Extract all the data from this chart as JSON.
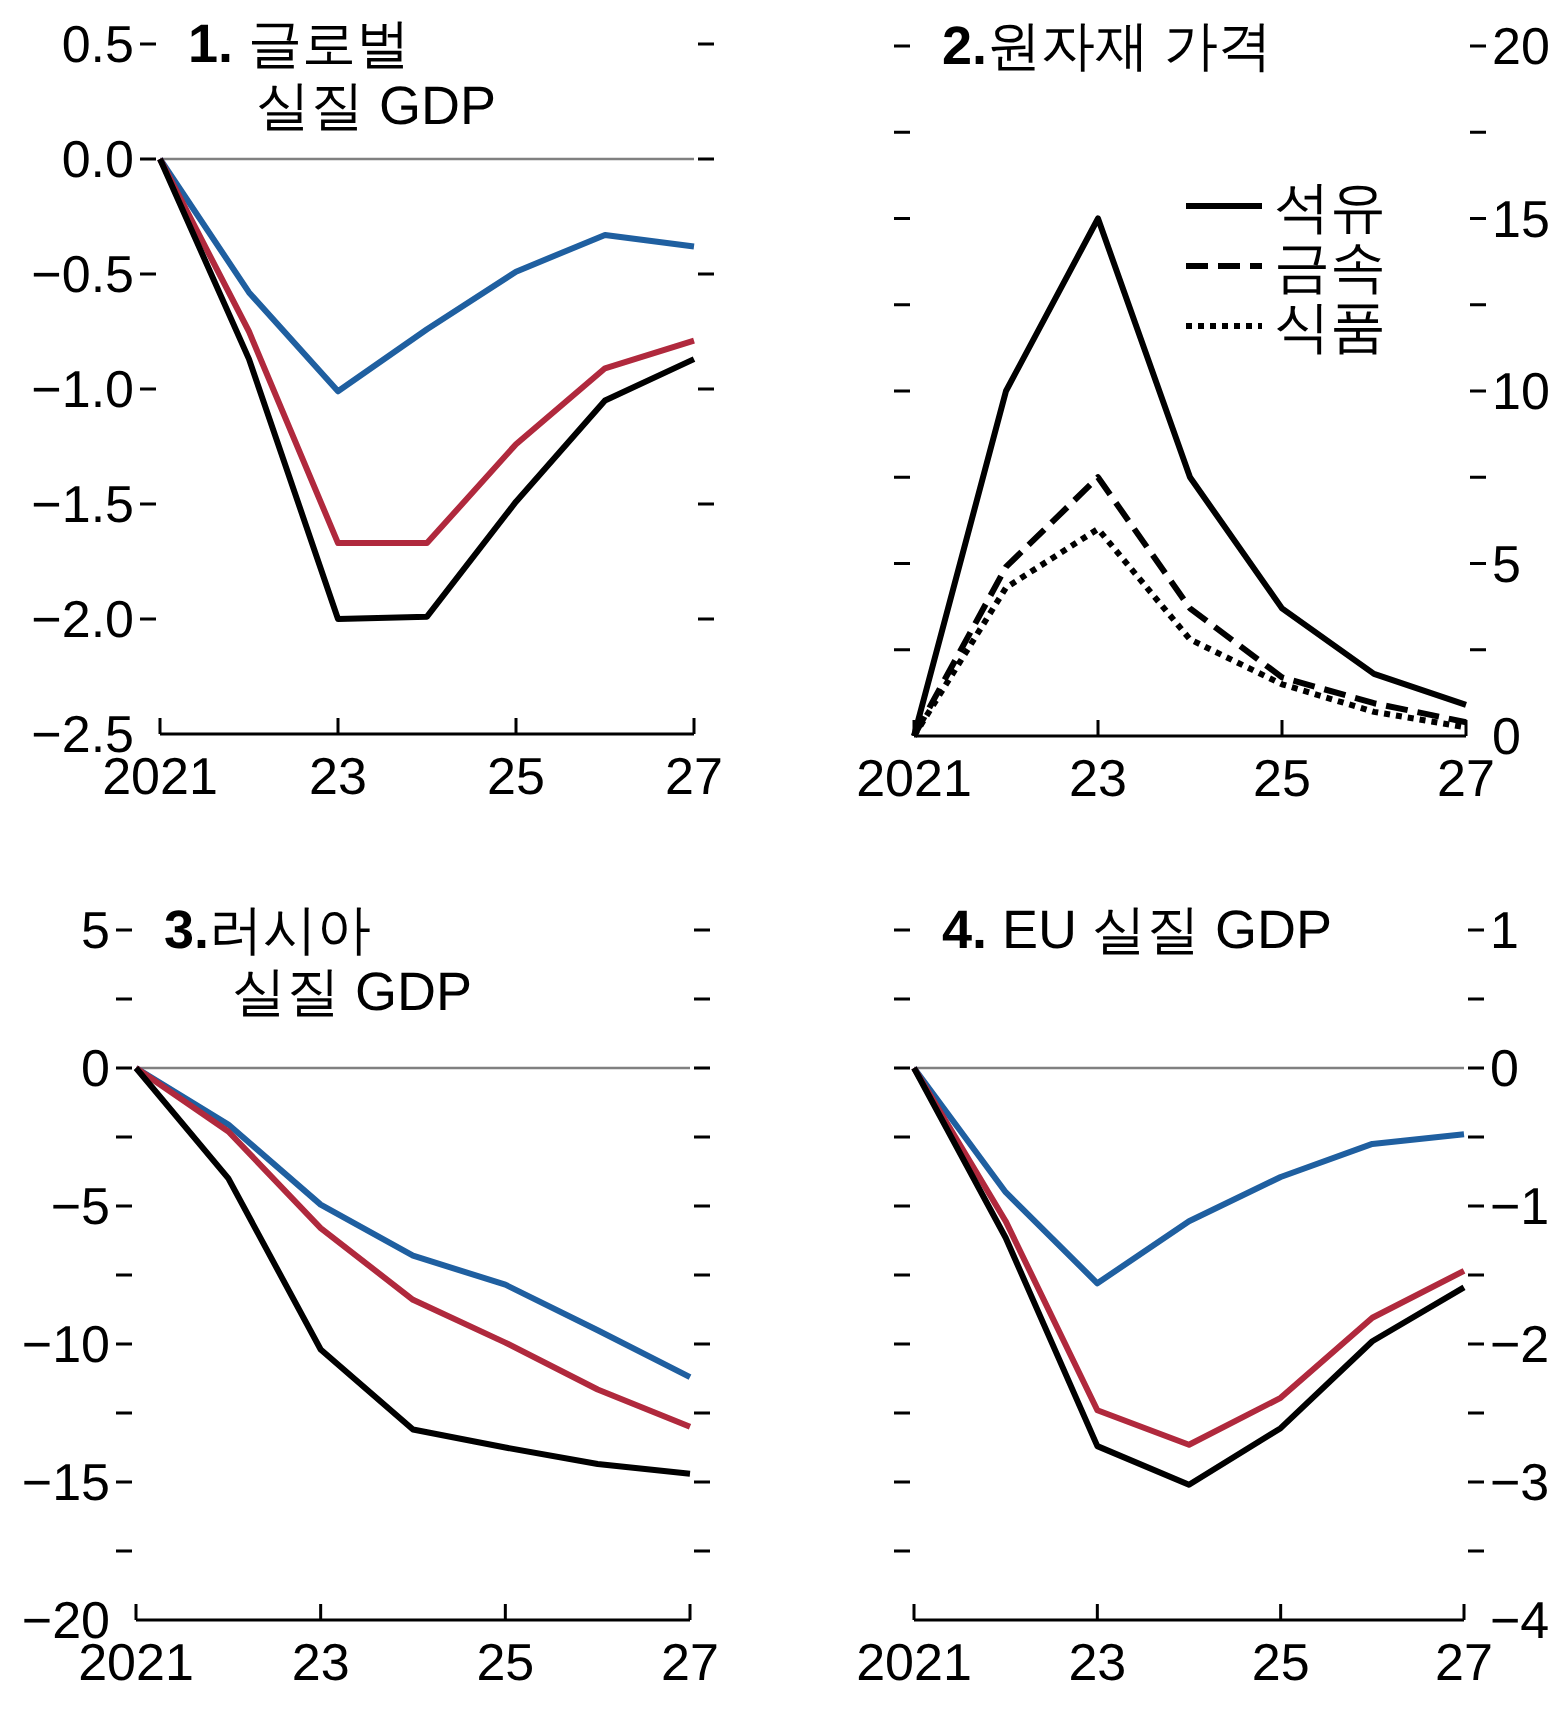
{
  "chart_data": [
    {
      "type": "line",
      "title": "1. 글로벌\n실질 GDP",
      "x": [
        2021,
        2022,
        2023,
        2024,
        2025,
        2026,
        2027
      ],
      "xlim": [
        2021,
        2027
      ],
      "xticks": [
        {
          "value": 2021,
          "label": "2021"
        },
        {
          "value": 2023,
          "label": "23"
        },
        {
          "value": 2025,
          "label": "25"
        },
        {
          "value": 2027,
          "label": "27"
        }
      ],
      "ylim": [
        -2.5,
        0.5
      ],
      "yticks": [
        {
          "value": -2.5,
          "label": "−2.5"
        },
        {
          "value": -2.0,
          "label": "−2.0"
        },
        {
          "value": -1.5,
          "label": "−1.5"
        },
        {
          "value": -1.0,
          "label": "−1.0"
        },
        {
          "value": -0.5,
          "label": "−0.5"
        },
        {
          "value": 0,
          "label": "0.0"
        },
        0.5
      ],
      "ref_lines": [
        {
          "axis": "y",
          "value": 0,
          "color": "#808080"
        }
      ],
      "legend": false,
      "grid": false,
      "series": [
        {
          "color": "#1f5fa0",
          "values": [
            0,
            -0.58,
            -1.01,
            -0.74,
            -0.49,
            -0.33,
            -0.38
          ]
        },
        {
          "color": "#b0293d",
          "values": [
            0,
            -0.75,
            -1.67,
            -1.67,
            -1.24,
            -0.91,
            -0.79
          ]
        },
        {
          "color": "#000000",
          "values": [
            0,
            -0.87,
            -2.0,
            -1.99,
            -1.49,
            -1.05,
            -0.87
          ]
        }
      ]
    },
    {
      "type": "line",
      "title": "2.원자재 가격",
      "x": [
        2021,
        2022,
        2023,
        2024,
        2025,
        2026,
        2027
      ],
      "xlim": [
        2021,
        2027
      ],
      "xticks": [
        {
          "value": 2021,
          "label": "2021"
        },
        {
          "value": 2023,
          "label": "23"
        },
        {
          "value": 2025,
          "label": "25"
        },
        {
          "value": 2027,
          "label": "27"
        }
      ],
      "y2lim": [
        0,
        20
      ],
      "y2ticks": [
        0,
        {
          "value": 2.5,
          "label": null
        },
        5,
        {
          "value": 7.5,
          "label": null
        },
        10,
        {
          "value": 12.5,
          "label": null
        },
        15,
        {
          "value": 17.5,
          "label": null
        },
        20
      ],
      "legend": "top right",
      "grid": false,
      "series": [
        {
          "name": "석유",
          "color": "#000000",
          "axis": "y2",
          "line_style": "solid",
          "values": [
            0,
            10.0,
            15.0,
            7.5,
            3.7,
            1.8,
            0.9
          ]
        },
        {
          "name": "금속",
          "color": "#000000",
          "axis": "y2",
          "line_style": "dashed",
          "values": [
            0,
            4.9,
            7.5,
            3.7,
            1.7,
            0.95,
            0.4
          ]
        },
        {
          "name": "식품",
          "color": "#000000",
          "axis": "y2",
          "line_style": "dotted",
          "values": [
            0,
            4.3,
            6.0,
            2.8,
            1.5,
            0.7,
            0.25
          ]
        }
      ]
    },
    {
      "type": "line",
      "title": "3.러시아\n실질 GDP",
      "x": [
        2021,
        2022,
        2023,
        2024,
        2025,
        2026,
        2027
      ],
      "xlim": [
        2021,
        2027
      ],
      "xticks": [
        {
          "value": 2021,
          "label": "2021"
        },
        {
          "value": 2023,
          "label": "23"
        },
        {
          "value": 2025,
          "label": "25"
        },
        {
          "value": 2027,
          "label": "27"
        }
      ],
      "ylim": [
        -20,
        5
      ],
      "yticks": [
        {
          "value": -20,
          "label": "−20"
        },
        {
          "value": -17.5,
          "label": null
        },
        {
          "value": -15,
          "label": "−15"
        },
        {
          "value": -12.5,
          "label": null
        },
        {
          "value": -10,
          "label": "−10"
        },
        {
          "value": -7.5,
          "label": null
        },
        {
          "value": -5,
          "label": "−5"
        },
        {
          "value": -2.5,
          "label": null
        },
        0,
        {
          "value": 2.5,
          "label": null
        },
        5
      ],
      "ref_lines": [
        {
          "axis": "y",
          "value": 0,
          "color": "#808080"
        }
      ],
      "legend": false,
      "grid": false,
      "series": [
        {
          "color": "#1f5fa0",
          "values": [
            0,
            -2.05,
            -4.95,
            -6.8,
            -7.85,
            -9.5,
            -11.2
          ]
        },
        {
          "color": "#b0293d",
          "values": [
            0,
            -2.3,
            -5.8,
            -8.4,
            -9.95,
            -11.65,
            -13.0
          ]
        },
        {
          "color": "#000000",
          "values": [
            0,
            -4.0,
            -10.2,
            -13.1,
            -13.75,
            -14.35,
            -14.7
          ]
        }
      ]
    },
    {
      "type": "line",
      "title": "4. EU 실질 GDP",
      "x": [
        2021,
        2022,
        2023,
        2024,
        2025,
        2026,
        2027
      ],
      "xlim": [
        2021,
        2027
      ],
      "xticks": [
        {
          "value": 2021,
          "label": "2021"
        },
        {
          "value": 2023,
          "label": "23"
        },
        {
          "value": 2025,
          "label": "25"
        },
        {
          "value": 2027,
          "label": "27"
        }
      ],
      "y2lim": [
        -4,
        1
      ],
      "y2ticks": [
        {
          "value": -4,
          "label": "−4"
        },
        {
          "value": -3.5,
          "label": null
        },
        {
          "value": -3,
          "label": "−3"
        },
        {
          "value": -2.5,
          "label": null
        },
        {
          "value": -2,
          "label": "−2"
        },
        {
          "value": -1.5,
          "label": null
        },
        {
          "value": -1,
          "label": "−1"
        },
        {
          "value": -0.5,
          "label": null
        },
        0,
        {
          "value": 0.5,
          "label": null
        },
        1
      ],
      "ref_lines": [
        {
          "axis": "y2",
          "value": 0,
          "color": "#808080"
        }
      ],
      "legend": false,
      "grid": false,
      "series": [
        {
          "color": "#1f5fa0",
          "axis": "y2",
          "values": [
            0,
            -0.9,
            -1.56,
            -1.11,
            -0.79,
            -0.55,
            -0.48
          ]
        },
        {
          "color": "#b0293d",
          "axis": "y2",
          "values": [
            0,
            -1.11,
            -2.48,
            -2.73,
            -2.39,
            -1.81,
            -1.47
          ]
        },
        {
          "color": "#000000",
          "axis": "y2",
          "values": [
            0,
            -1.23,
            -2.74,
            -3.02,
            -2.61,
            -1.98,
            -1.59
          ]
        }
      ]
    }
  ]
}
